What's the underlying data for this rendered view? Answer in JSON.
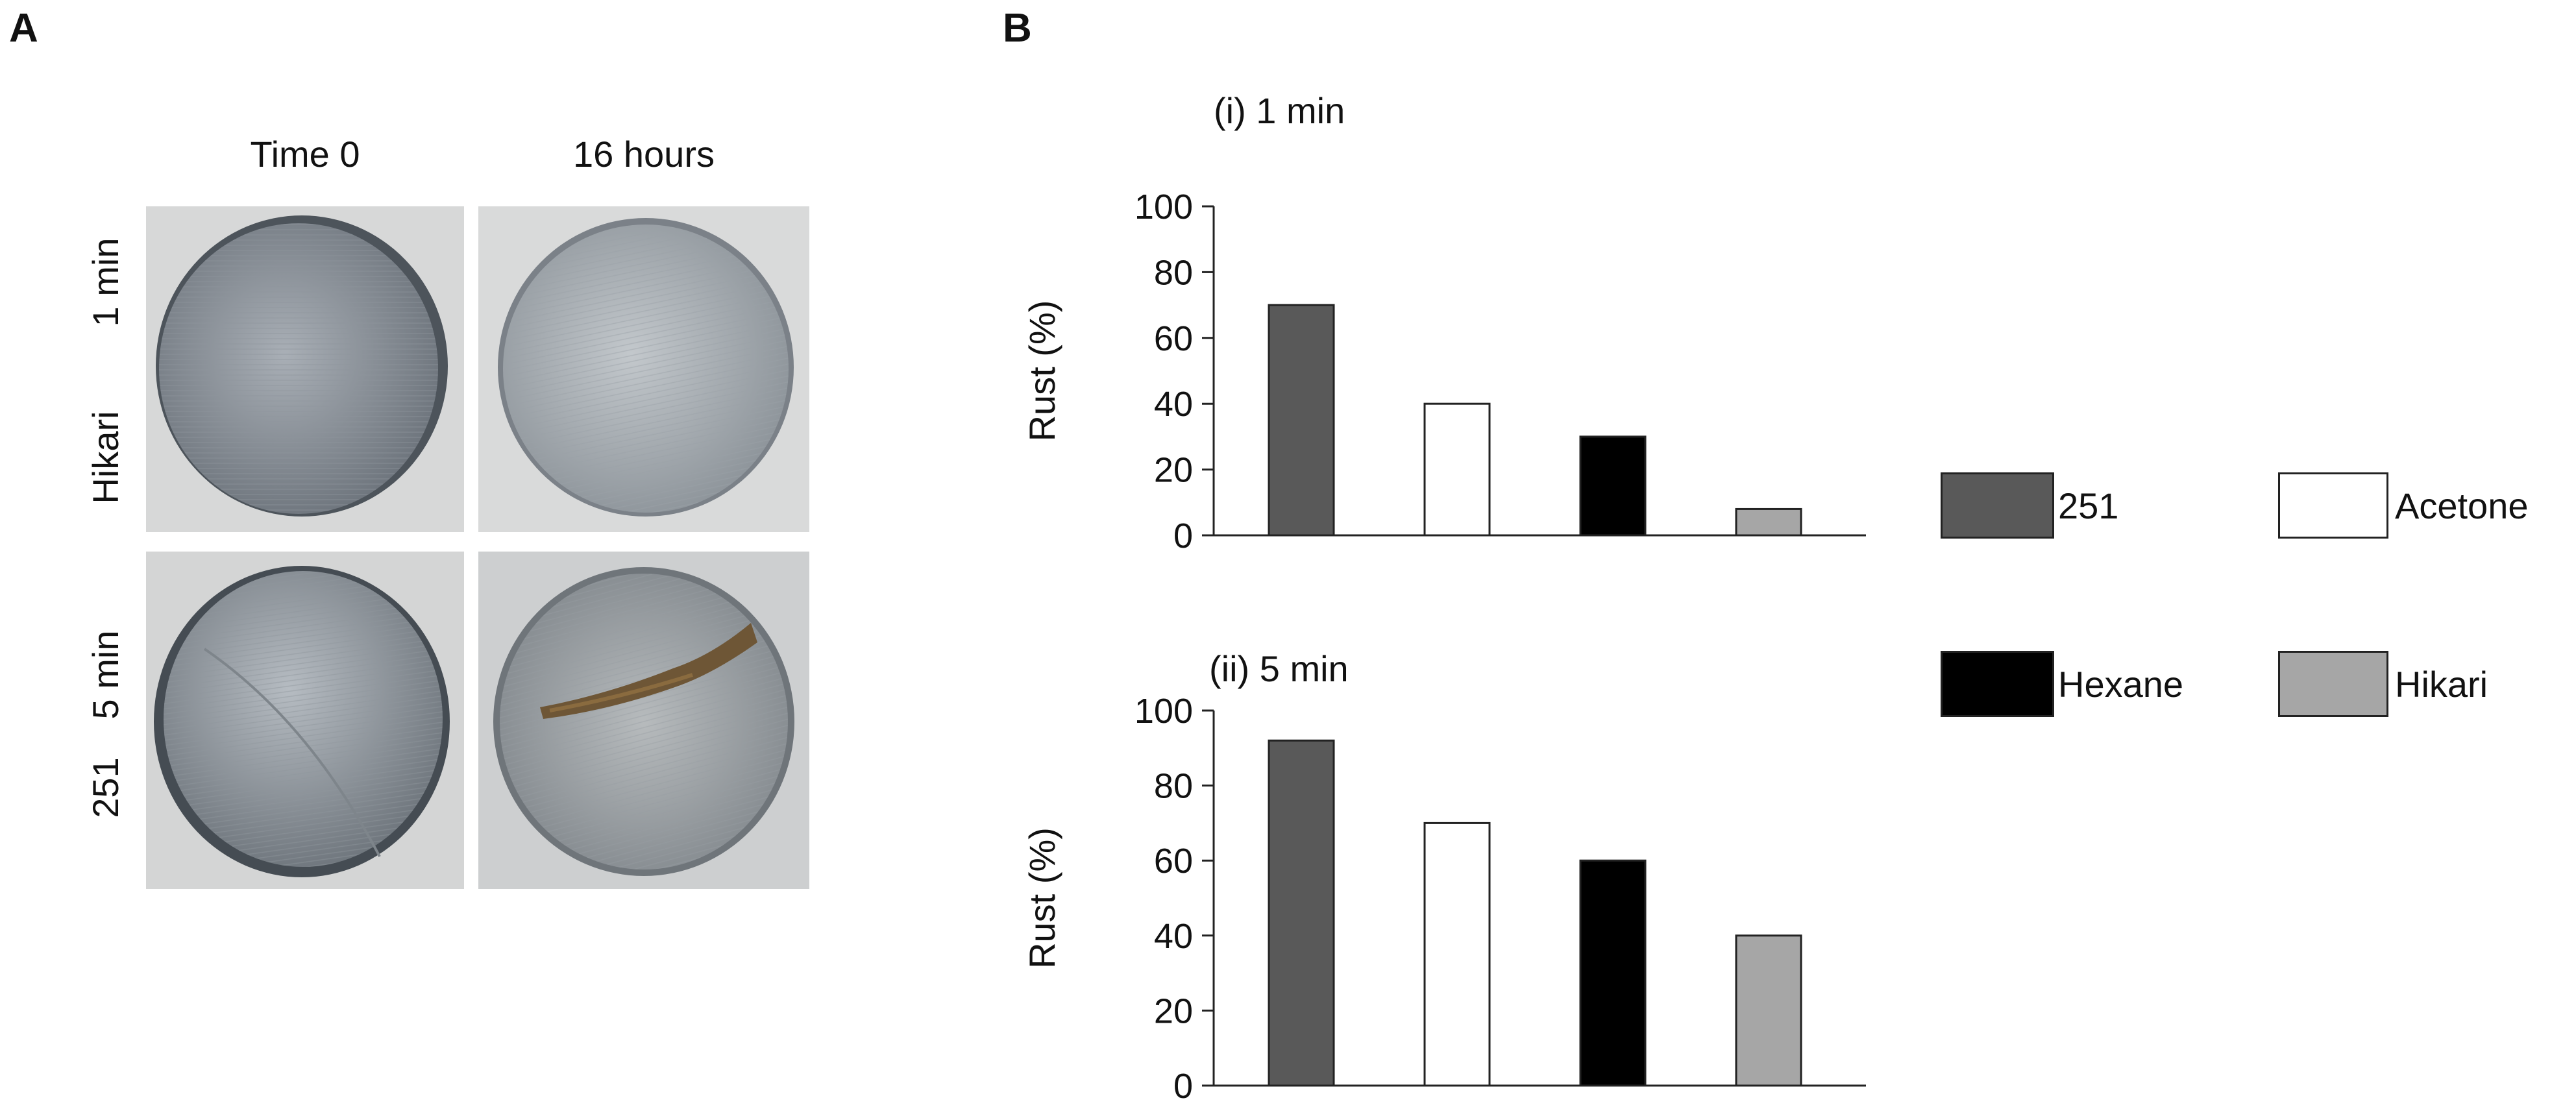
{
  "panel_a": {
    "letter": "A",
    "col_headers": [
      "Time 0",
      "16 hours"
    ],
    "rows": [
      {
        "name_label": "Hikari",
        "time_label": "1 min"
      },
      {
        "name_label": "251",
        "time_label": "5 min"
      }
    ]
  },
  "panel_b": {
    "letter": "B"
  },
  "chart_data": [
    {
      "type": "bar",
      "title": "(i) 1 min",
      "ylabel": "Rust (%)",
      "xlabel": "",
      "ylim": [
        0,
        100
      ],
      "yticks": [
        0,
        20,
        40,
        60,
        80,
        100
      ],
      "categories": [
        "251",
        "Acetone",
        "Hexane",
        "Hikari"
      ],
      "values": [
        70,
        40,
        30,
        8
      ],
      "colors": [
        "#595959",
        "#ffffff",
        "#000000",
        "#a6a6a6"
      ],
      "legend": "right"
    },
    {
      "type": "bar",
      "title": "(ii) 5 min",
      "ylabel": "Rust (%)",
      "xlabel": "",
      "ylim": [
        0,
        100
      ],
      "yticks": [
        0,
        20,
        40,
        60,
        80,
        100
      ],
      "categories": [
        "251",
        "Acetone",
        "Hexane",
        "Hikari"
      ],
      "values": [
        92,
        70,
        60,
        40
      ],
      "colors": [
        "#595959",
        "#ffffff",
        "#000000",
        "#a6a6a6"
      ],
      "legend": "right"
    }
  ],
  "legend": {
    "entries": [
      {
        "label": "251",
        "color": "#595959"
      },
      {
        "label": "Acetone",
        "color": "#ffffff"
      },
      {
        "label": "Hexane",
        "color": "#000000"
      },
      {
        "label": "Hikari",
        "color": "#a6a6a6"
      }
    ]
  }
}
